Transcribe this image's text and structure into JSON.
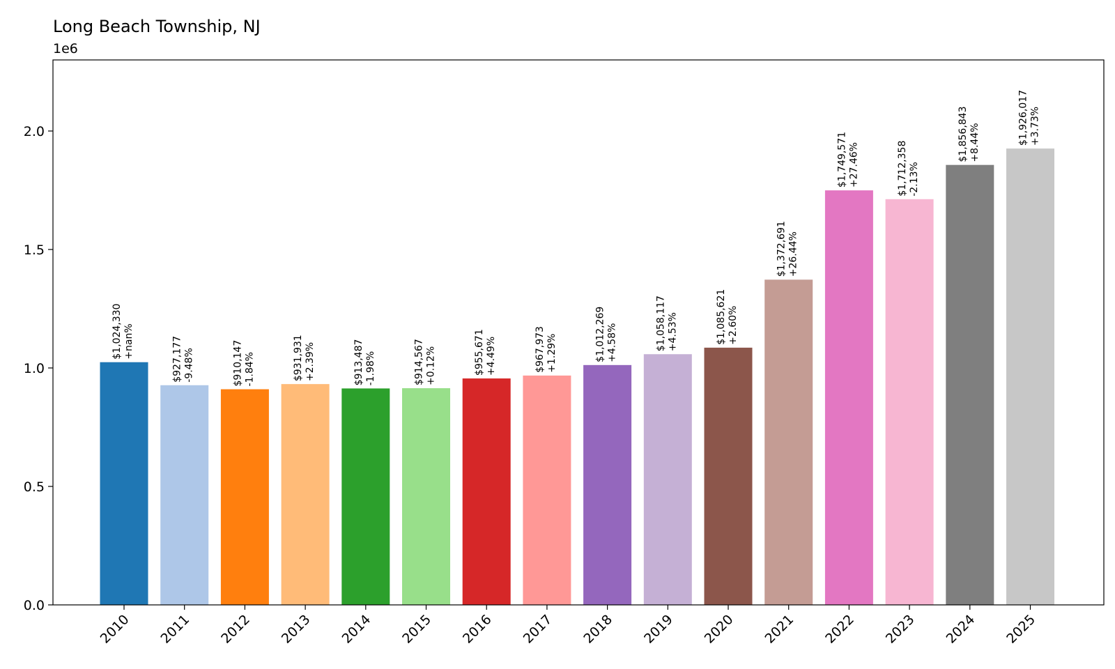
{
  "chart_data": {
    "type": "bar",
    "title": "Long Beach Township, NJ",
    "offset_text": "1e6",
    "categories": [
      "2010",
      "2011",
      "2012",
      "2013",
      "2014",
      "2015",
      "2016",
      "2017",
      "2018",
      "2019",
      "2020",
      "2021",
      "2022",
      "2023",
      "2024",
      "2025"
    ],
    "values": [
      1024330,
      927177,
      910147,
      931931,
      913487,
      914567,
      955671,
      967973,
      1012269,
      1058117,
      1085621,
      1372691,
      1749571,
      1712358,
      1856843,
      1926017
    ],
    "value_labels": [
      "$1,024,330",
      "$927,177",
      "$910,147",
      "$931,931",
      "$913,487",
      "$914,567",
      "$955,671",
      "$967,973",
      "$1,012,269",
      "$1,058,117",
      "$1,085,621",
      "$1,372,691",
      "$1,749,571",
      "$1,712,358",
      "$1,856,843",
      "$1,926,017"
    ],
    "change_labels": [
      "+nan%",
      "-9.48%",
      "-1.84%",
      "+2.39%",
      "-1.98%",
      "+0.12%",
      "+4.49%",
      "+1.29%",
      "+4.58%",
      "+4.53%",
      "+2.60%",
      "+26.44%",
      "+27.46%",
      "-2.13%",
      "+8.44%",
      "+3.73%"
    ],
    "colors": [
      "#1f77b4",
      "#aec7e8",
      "#ff7f0e",
      "#ffbb78",
      "#2ca02c",
      "#98df8a",
      "#d62728",
      "#ff9896",
      "#9467bd",
      "#c5b0d5",
      "#8c564b",
      "#c49c94",
      "#e377c2",
      "#f7b6d2",
      "#7f7f7f",
      "#c7c7c7"
    ],
    "y_ticks": [
      0,
      500000,
      1000000,
      1500000,
      2000000
    ],
    "y_tick_labels": [
      "0.0",
      "0.5",
      "1.0",
      "1.5",
      "2.0"
    ],
    "ylim": [
      0,
      2300000
    ],
    "xlabel": "",
    "ylabel": "",
    "grid": false,
    "legend": "none"
  }
}
